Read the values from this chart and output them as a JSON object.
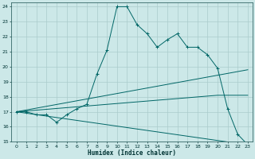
{
  "xlabel": "Humidex (Indice chaleur)",
  "background_color": "#cce8e8",
  "grid_color": "#aacccc",
  "line_color": "#006666",
  "xlim": [
    -0.5,
    23.5
  ],
  "ylim": [
    15,
    24.3
  ],
  "xticks": [
    0,
    1,
    2,
    3,
    4,
    5,
    6,
    7,
    8,
    9,
    10,
    11,
    12,
    13,
    14,
    15,
    16,
    17,
    18,
    19,
    20,
    21,
    22,
    23
  ],
  "yticks": [
    15,
    16,
    17,
    18,
    19,
    20,
    21,
    22,
    23,
    24
  ],
  "series": [
    {
      "x": [
        0,
        1,
        2,
        3,
        4,
        5,
        6,
        7,
        8,
        9,
        10,
        11,
        12,
        13,
        14,
        15,
        16,
        17,
        18,
        19,
        20,
        21,
        22,
        23
      ],
      "y": [
        17.0,
        17.0,
        16.8,
        16.8,
        16.3,
        16.8,
        17.2,
        17.5,
        19.5,
        21.1,
        24.0,
        24.0,
        22.8,
        22.2,
        21.3,
        21.8,
        22.2,
        21.3,
        21.3,
        20.8,
        19.9,
        17.2,
        15.5,
        14.8
      ],
      "marker": "+"
    },
    {
      "x": [
        0,
        23
      ],
      "y": [
        17.0,
        19.8
      ],
      "marker": null
    },
    {
      "x": [
        0,
        20,
        23
      ],
      "y": [
        17.0,
        18.1,
        18.1
      ],
      "marker": null
    },
    {
      "x": [
        0,
        23
      ],
      "y": [
        17.0,
        14.8
      ],
      "marker": null
    }
  ]
}
